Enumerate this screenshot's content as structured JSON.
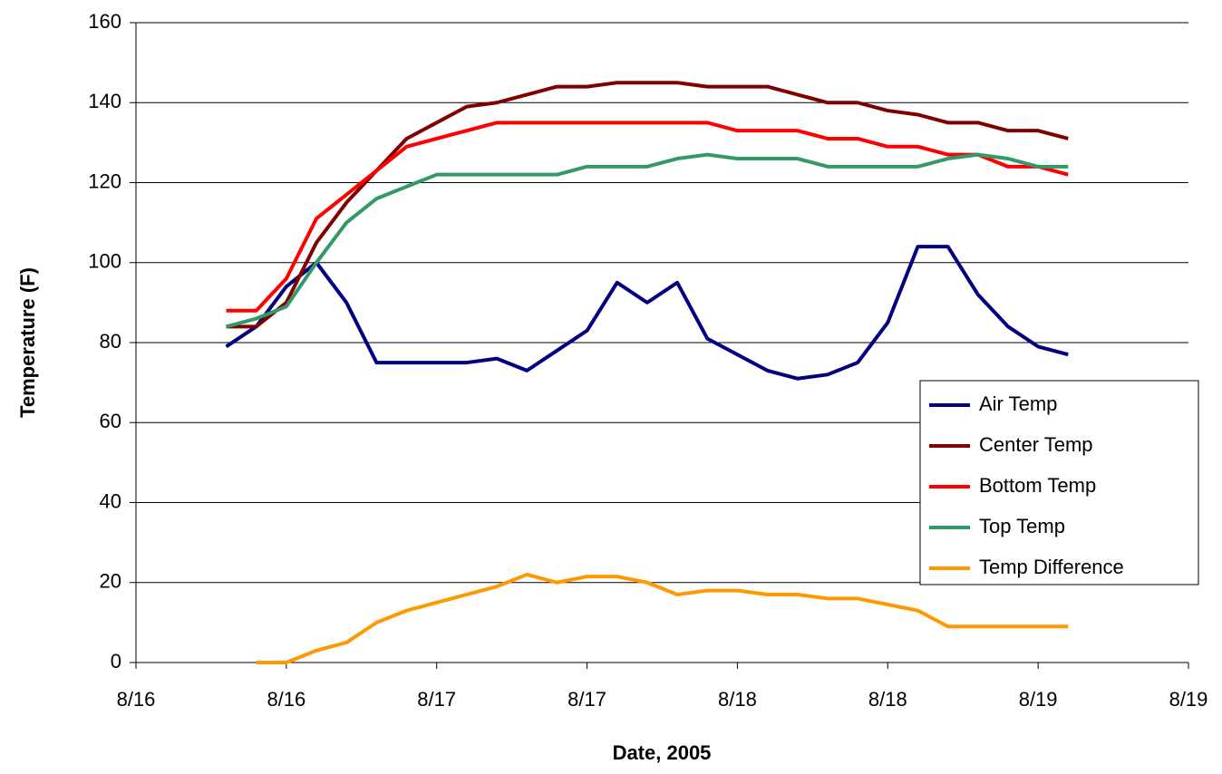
{
  "chart_data": {
    "type": "line",
    "x_label": "Date, 2005",
    "y_label": "Temperature (F)",
    "x": [
      16.3,
      16.4,
      16.5,
      16.6,
      16.7,
      16.8,
      16.9,
      17.0,
      17.1,
      17.2,
      17.3,
      17.4,
      17.5,
      17.6,
      17.7,
      17.8,
      17.9,
      18.0,
      18.1,
      18.2,
      18.3,
      18.4,
      18.5,
      18.6,
      18.7,
      18.8,
      18.9,
      19.0,
      19.1
    ],
    "series": [
      {
        "name": "Air Temp",
        "color": "#000080",
        "values": [
          79,
          84,
          94,
          100,
          90,
          75,
          75,
          75,
          75,
          76,
          73,
          78,
          83,
          95,
          90,
          95,
          81,
          77,
          73,
          71,
          72,
          75,
          85,
          104,
          104,
          92,
          84,
          79,
          77
        ]
      },
      {
        "name": "Center Temp",
        "color": "#800000",
        "values": [
          84,
          84,
          90,
          105,
          115,
          123,
          131,
          135,
          139,
          140,
          142,
          144,
          144,
          145,
          145,
          145,
          144,
          144,
          144,
          142,
          140,
          140,
          138,
          137,
          135,
          135,
          133,
          133,
          131
        ]
      },
      {
        "name": "Bottom Temp",
        "color": "#ff0000",
        "values": [
          88,
          88,
          96,
          111,
          117,
          123,
          129,
          131,
          133,
          135,
          135,
          135,
          135,
          135,
          135,
          135,
          135,
          133,
          133,
          133,
          131,
          131,
          129,
          129,
          127,
          127,
          124,
          124,
          122
        ]
      },
      {
        "name": "Top Temp",
        "color": "#339966",
        "values": [
          84,
          86,
          89,
          100,
          110,
          116,
          119,
          122,
          122,
          122,
          122,
          122,
          124,
          124,
          124,
          126,
          127,
          126,
          126,
          126,
          124,
          124,
          124,
          124,
          126,
          127,
          126,
          124,
          124
        ]
      },
      {
        "name": "Temp Difference",
        "color": "#ff9900",
        "values": [
          null,
          0,
          0,
          3,
          5,
          10,
          13,
          15,
          17,
          19,
          22,
          20,
          21.5,
          21.5,
          20,
          17,
          18,
          18,
          17,
          17,
          16,
          16,
          14.5,
          13,
          9,
          9,
          9,
          9,
          9
        ]
      }
    ],
    "xlim": [
      16,
      19.5
    ],
    "xticks": [
      {
        "value": 16,
        "label": "8/16"
      },
      {
        "value": 16.5,
        "label": "8/16"
      },
      {
        "value": 17,
        "label": "8/17"
      },
      {
        "value": 17.5,
        "label": "8/17"
      },
      {
        "value": 18,
        "label": "8/18"
      },
      {
        "value": 18.5,
        "label": "8/18"
      },
      {
        "value": 19,
        "label": "8/19"
      },
      {
        "value": 19.5,
        "label": "8/19"
      }
    ],
    "ylim": [
      0,
      160
    ],
    "yticks": [
      0,
      20,
      40,
      60,
      80,
      100,
      120,
      140,
      160
    ],
    "grid": true,
    "legend": "right"
  }
}
